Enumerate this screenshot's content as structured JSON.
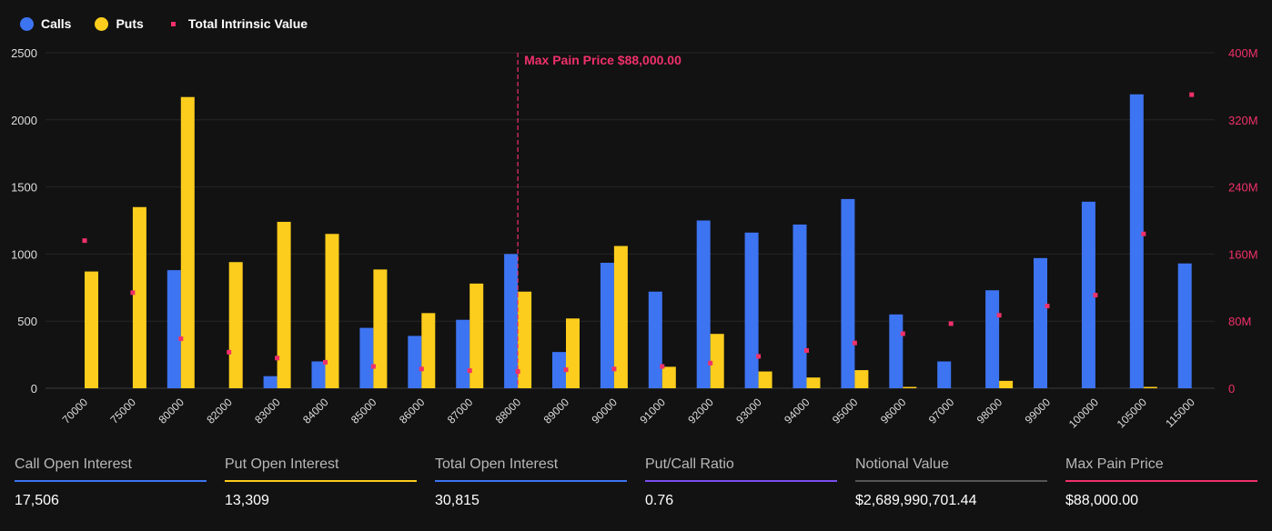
{
  "legend": {
    "calls_label": "Calls",
    "puts_label": "Puts",
    "intrinsic_label": "Total Intrinsic Value"
  },
  "colors": {
    "calls": "#3d74f2",
    "puts": "#fccd1c",
    "intrinsic": "#f0306a",
    "ratio_line": "#7b4ef0",
    "notional_line": "#555555",
    "axis_text": "#dddddd",
    "right_axis_text": "#f0306a",
    "grid": "#262626"
  },
  "chart_data": {
    "type": "bar",
    "categories": [
      "70000",
      "75000",
      "80000",
      "82000",
      "83000",
      "84000",
      "85000",
      "86000",
      "87000",
      "88000",
      "89000",
      "90000",
      "91000",
      "92000",
      "93000",
      "94000",
      "95000",
      "96000",
      "97000",
      "98000",
      "99000",
      "100000",
      "105000",
      "115000"
    ],
    "series": [
      {
        "name": "Calls",
        "axis": "left",
        "values": [
          0,
          0,
          880,
          0,
          90,
          200,
          450,
          390,
          510,
          1000,
          270,
          935,
          720,
          1250,
          1160,
          1220,
          1410,
          550,
          200,
          730,
          970,
          1390,
          2190,
          930
        ]
      },
      {
        "name": "Puts",
        "axis": "left",
        "values": [
          870,
          1350,
          2170,
          940,
          1240,
          1150,
          885,
          560,
          780,
          720,
          520,
          1060,
          160,
          405,
          125,
          80,
          135,
          10,
          0,
          55,
          0,
          0,
          10,
          0
        ]
      },
      {
        "name": "Total Intrinsic Value",
        "axis": "right",
        "type": "scatter",
        "values": [
          176000000,
          114000000,
          59000000,
          43000000,
          36000000,
          31000000,
          26000000,
          23000000,
          21000000,
          20000000,
          22000000,
          23000000,
          26000000,
          30000000,
          38000000,
          45000000,
          54000000,
          65000000,
          77000000,
          87000000,
          98000000,
          111000000,
          184000000,
          350000000
        ]
      }
    ],
    "ylim": [
      0,
      2500
    ],
    "yticks": [
      "0",
      "500",
      "1000",
      "1500",
      "2000",
      "2500"
    ],
    "y2lim": [
      0,
      400000000
    ],
    "y2ticks": [
      "0",
      "80M",
      "160M",
      "240M",
      "320M",
      "400M"
    ],
    "max_pain": {
      "category": "88000",
      "label": "Max Pain Price $88,000.00"
    },
    "grid": true,
    "legend_position": "top-left"
  },
  "stats": [
    {
      "label": "Call Open Interest",
      "value": "17,506",
      "color": "#3d74f2"
    },
    {
      "label": "Put Open Interest",
      "value": "13,309",
      "color": "#fccd1c"
    },
    {
      "label": "Total Open Interest",
      "value": "30,815",
      "color": "#3d74f2"
    },
    {
      "label": "Put/Call Ratio",
      "value": "0.76",
      "color": "#7b4ef0"
    },
    {
      "label": "Notional Value",
      "value": "$2,689,990,701.44",
      "color": "#555555"
    },
    {
      "label": "Max Pain Price",
      "value": "$88,000.00",
      "color": "#f0306a"
    }
  ]
}
